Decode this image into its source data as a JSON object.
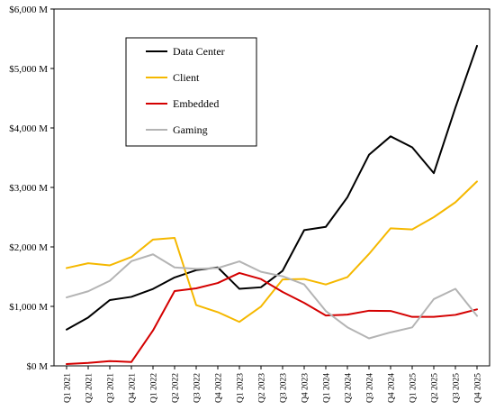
{
  "chart_data": {
    "type": "line",
    "title": "",
    "xlabel": "",
    "ylabel": "",
    "categories": [
      "Q1 2021",
      "Q2 2021",
      "Q3 2021",
      "Q4 2021",
      "Q1 2022",
      "Q2 2022",
      "Q3 2022",
      "Q4 2022",
      "Q1 2023",
      "Q2 2023",
      "Q3 2023",
      "Q4 2023",
      "Q1 2024",
      "Q2 2024",
      "Q3 2024",
      "Q4 2024",
      "Q1 2025",
      "Q2 2025",
      "Q3 2025",
      "Q4 2025"
    ],
    "ylim": [
      0,
      6000
    ],
    "yticks": [
      0,
      1000,
      2000,
      3000,
      4000,
      5000,
      6000
    ],
    "ytick_labels": [
      "$0 M",
      "$1,000 M",
      "$2,000 M",
      "$3,000 M",
      "$4,000 M",
      "$5,000 M",
      "$6,000 M"
    ],
    "grid": false,
    "legend_position": "top-left",
    "series": [
      {
        "name": "Data Center",
        "color": "#000000",
        "values": [
          610,
          813,
          1106,
          1160,
          1293,
          1486,
          1609,
          1655,
          1295,
          1321,
          1598,
          2282,
          2337,
          2834,
          3549,
          3859,
          3674,
          3240,
          4341,
          5380
        ]
      },
      {
        "name": "Client",
        "color": "#f5b800",
        "values": [
          1645,
          1725,
          1690,
          1830,
          2124,
          2152,
          1022,
          903,
          739,
          998,
          1453,
          1461,
          1368,
          1492,
          1881,
          2313,
          2294,
          2500,
          2750,
          3100
        ]
      },
      {
        "name": "Embedded",
        "color": "#d40000",
        "values": [
          30,
          50,
          80,
          65,
          595,
          1257,
          1303,
          1393,
          1562,
          1459,
          1243,
          1059,
          846,
          861,
          927,
          923,
          823,
          824,
          857,
          950
        ]
      },
      {
        "name": "Gaming",
        "color": "#b4b4b4",
        "values": [
          1150,
          1254,
          1430,
          1760,
          1875,
          1655,
          1631,
          1644,
          1757,
          1581,
          1506,
          1368,
          922,
          648,
          462,
          563,
          647,
          1122,
          1295,
          840
        ]
      }
    ]
  }
}
